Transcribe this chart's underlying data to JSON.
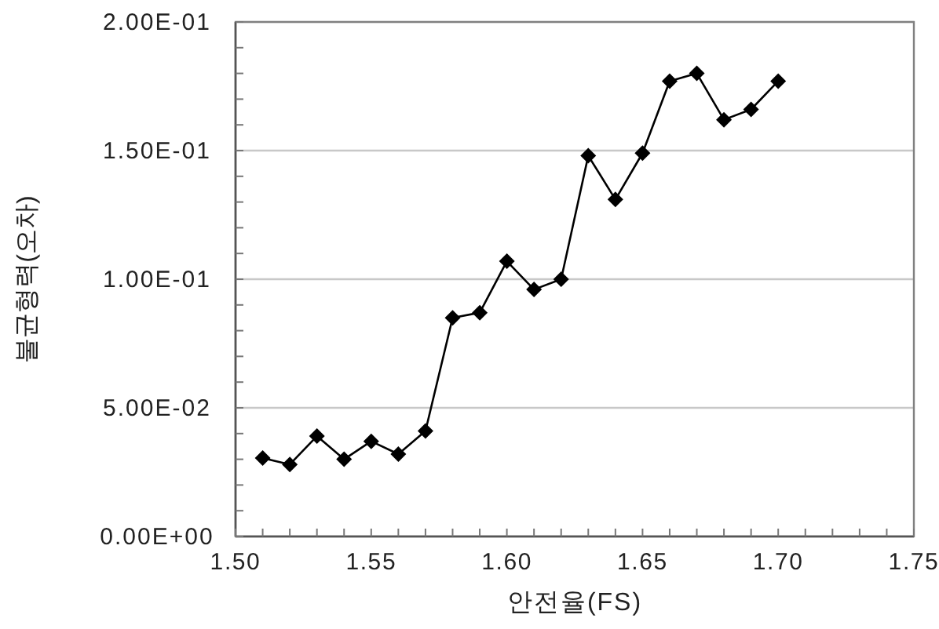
{
  "chart_data": {
    "type": "line",
    "xlabel": "안전율(FS)",
    "ylabel": "불균형력(오차)",
    "x": [
      1.51,
      1.52,
      1.53,
      1.54,
      1.55,
      1.56,
      1.57,
      1.58,
      1.59,
      1.6,
      1.61,
      1.62,
      1.63,
      1.64,
      1.65,
      1.66,
      1.67,
      1.68,
      1.69,
      1.7
    ],
    "series": [
      {
        "color": "#000000",
        "values": [
          0.0305,
          0.028,
          0.039,
          0.03,
          0.037,
          0.032,
          0.041,
          0.085,
          0.087,
          0.107,
          0.096,
          0.1,
          0.148,
          0.131,
          0.149,
          0.177,
          0.18,
          0.162,
          0.166,
          0.177
        ]
      }
    ],
    "marker": "diamond",
    "line_style": "solid",
    "grid": "y",
    "xlim": [
      1.5,
      1.75
    ],
    "ylim": [
      0,
      0.2
    ],
    "xticks": [
      {
        "value": 1.5,
        "label": "1.50"
      },
      {
        "value": 1.51,
        "label": null
      },
      {
        "value": 1.52,
        "label": null
      },
      {
        "value": 1.53,
        "label": null
      },
      {
        "value": 1.54,
        "label": null
      },
      {
        "value": 1.55,
        "label": "1.55"
      },
      {
        "value": 1.56,
        "label": null
      },
      {
        "value": 1.57,
        "label": null
      },
      {
        "value": 1.58,
        "label": null
      },
      {
        "value": 1.59,
        "label": null
      },
      {
        "value": 1.6,
        "label": "1.60"
      },
      {
        "value": 1.61,
        "label": null
      },
      {
        "value": 1.62,
        "label": null
      },
      {
        "value": 1.63,
        "label": null
      },
      {
        "value": 1.64,
        "label": null
      },
      {
        "value": 1.65,
        "label": "1.65"
      },
      {
        "value": 1.66,
        "label": null
      },
      {
        "value": 1.67,
        "label": null
      },
      {
        "value": 1.68,
        "label": null
      },
      {
        "value": 1.69,
        "label": null
      },
      {
        "value": 1.7,
        "label": "1.70"
      },
      {
        "value": 1.71,
        "label": null
      },
      {
        "value": 1.72,
        "label": null
      },
      {
        "value": 1.73,
        "label": null
      },
      {
        "value": 1.74,
        "label": null
      },
      {
        "value": 1.75,
        "label": "1.75"
      }
    ],
    "yticks": [
      {
        "value": 0,
        "label": "0.00E+00"
      },
      {
        "value": 0.01,
        "label": null
      },
      {
        "value": 0.02,
        "label": null
      },
      {
        "value": 0.03,
        "label": null
      },
      {
        "value": 0.04,
        "label": null
      },
      {
        "value": 0.05,
        "label": "5.00E-02"
      },
      {
        "value": 0.06,
        "label": null
      },
      {
        "value": 0.07,
        "label": null
      },
      {
        "value": 0.08,
        "label": null
      },
      {
        "value": 0.09,
        "label": null
      },
      {
        "value": 0.1,
        "label": "1.00E-01"
      },
      {
        "value": 0.11,
        "label": null
      },
      {
        "value": 0.12,
        "label": null
      },
      {
        "value": 0.13,
        "label": null
      },
      {
        "value": 0.14,
        "label": null
      },
      {
        "value": 0.15,
        "label": "1.50E-01"
      },
      {
        "value": 0.16,
        "label": null
      },
      {
        "value": 0.17,
        "label": null
      },
      {
        "value": 0.18,
        "label": null
      },
      {
        "value": 0.19,
        "label": null
      },
      {
        "value": 0.2,
        "label": "2.00E-01"
      }
    ]
  }
}
